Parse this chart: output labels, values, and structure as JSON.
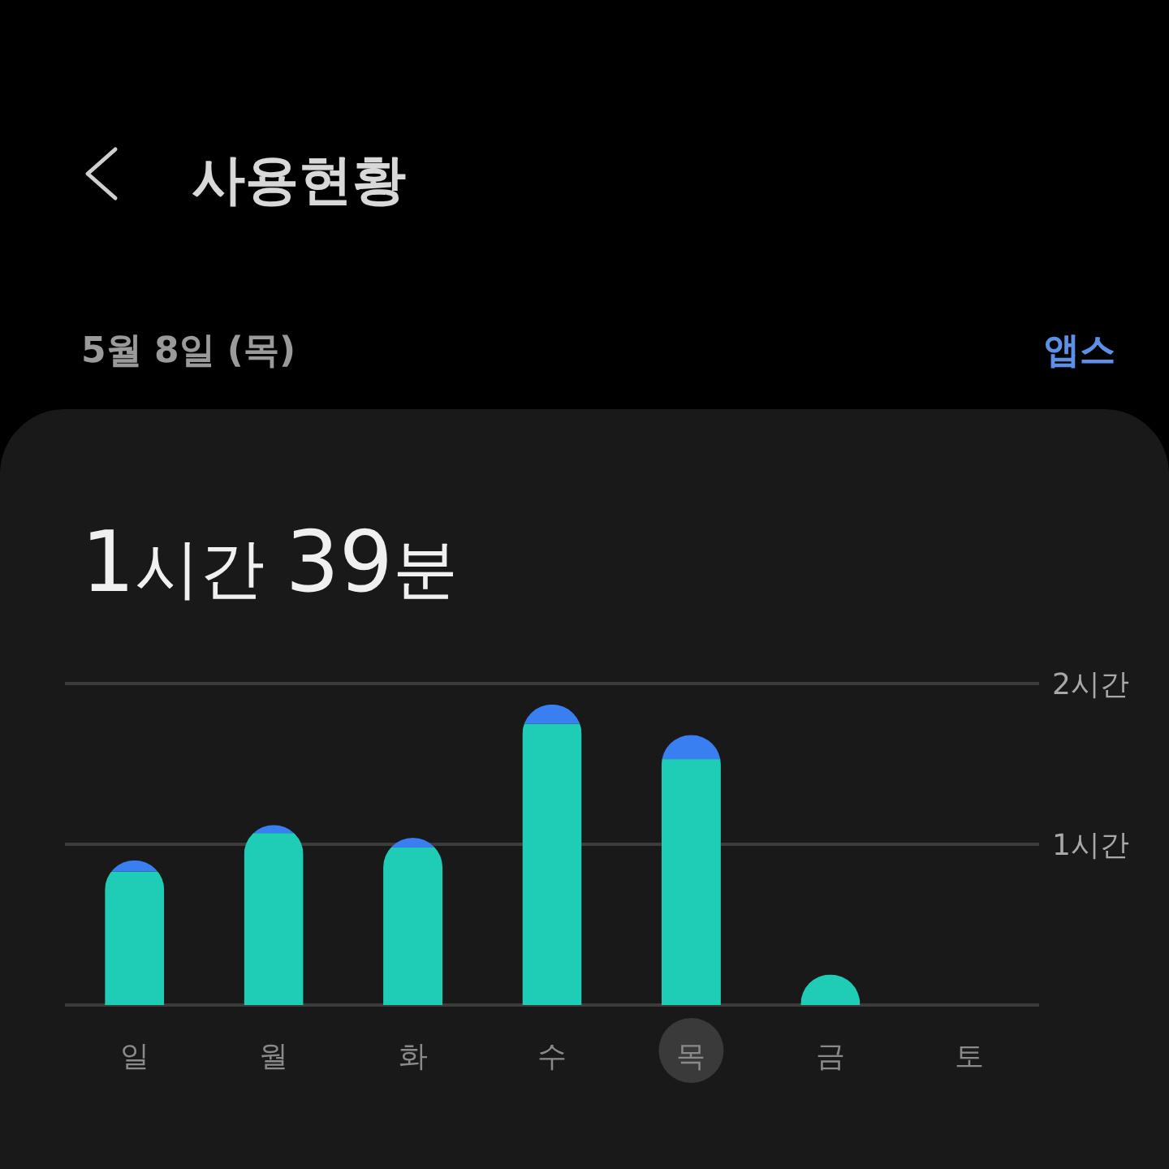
{
  "chart_data": {
    "type": "bar",
    "title": "사용현황",
    "subtitle": "5월 8일 (목)",
    "annotations": [
      "앱스",
      "1시간 39분"
    ],
    "categories": [
      "일",
      "월",
      "화",
      "수",
      "목",
      "금",
      "토"
    ],
    "stacked": true,
    "series": [
      {
        "color": "#1fcdb6",
        "values": [
          0.83,
          1.07,
          0.98,
          1.75,
          1.53,
          0.19,
          null
        ]
      },
      {
        "color": "#3a7ff2",
        "values": [
          0.07,
          0.05,
          0.06,
          0.12,
          0.15,
          null,
          null
        ]
      }
    ],
    "ylim": [
      0,
      2
    ],
    "yticks": [
      {
        "value": 0,
        "label": null
      },
      {
        "value": 1,
        "label": "1시간"
      },
      {
        "value": 2,
        "label": "2시간"
      }
    ],
    "grid": "y"
  }
}
